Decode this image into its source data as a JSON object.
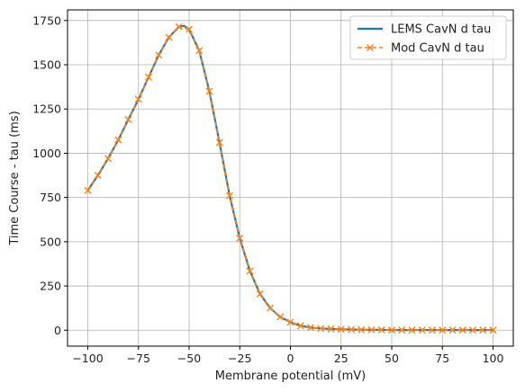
{
  "chart_data": {
    "type": "line",
    "title": "",
    "xlabel": "Membrane potential (mV)",
    "ylabel": "Time Course - tau (ms)",
    "xlim": [
      -110,
      110
    ],
    "ylim": [
      -90,
      1810
    ],
    "xticks": [
      "-100",
      "-75",
      "-50",
      "-25",
      "0",
      "25",
      "50",
      "75",
      "100"
    ],
    "yticks": [
      "0",
      "250",
      "500",
      "750",
      "1000",
      "1250",
      "1500",
      "1750"
    ],
    "grid": true,
    "legend_position": "top-right",
    "series": [
      {
        "name": "LEMS CavN d tau",
        "style": "solid",
        "color": "#1f77b4",
        "x": [
          -100,
          -95,
          -90,
          -85,
          -80,
          -75,
          -70,
          -65,
          -60,
          -55,
          -52.5,
          -50,
          -45,
          -40,
          -35,
          -30,
          -25,
          -20,
          -15,
          -10,
          -5,
          0,
          5,
          10,
          15,
          20,
          25,
          30,
          35,
          40,
          45,
          50,
          55,
          60,
          65,
          70,
          75,
          80,
          85,
          90,
          95,
          100
        ],
        "y": [
          790,
          875,
          970,
          1075,
          1190,
          1305,
          1430,
          1555,
          1655,
          1715,
          1720,
          1700,
          1580,
          1350,
          1060,
          760,
          520,
          335,
          205,
          125,
          75,
          45,
          25,
          15,
          10,
          7,
          5,
          4,
          3,
          2,
          2,
          1,
          1,
          1,
          1,
          1,
          1,
          1,
          1,
          1,
          1,
          1
        ]
      },
      {
        "name": "Mod CavN d tau",
        "style": "dashed",
        "marker": "x",
        "color": "#ff7f0e",
        "x": [
          -100,
          -95,
          -90,
          -85,
          -80,
          -75,
          -70,
          -65,
          -60,
          -55,
          -50,
          -45,
          -40,
          -35,
          -30,
          -25,
          -20,
          -15,
          -10,
          -5,
          0,
          5,
          10,
          15,
          20,
          25,
          30,
          35,
          40,
          45,
          50,
          55,
          60,
          65,
          70,
          75,
          80,
          85,
          90,
          95,
          100
        ],
        "y": [
          790,
          875,
          970,
          1075,
          1190,
          1305,
          1430,
          1555,
          1655,
          1715,
          1700,
          1580,
          1350,
          1060,
          760,
          520,
          335,
          205,
          125,
          75,
          45,
          25,
          15,
          10,
          7,
          5,
          4,
          3,
          2,
          2,
          1,
          1,
          1,
          1,
          1,
          1,
          1,
          1,
          1,
          1,
          1
        ]
      }
    ]
  }
}
